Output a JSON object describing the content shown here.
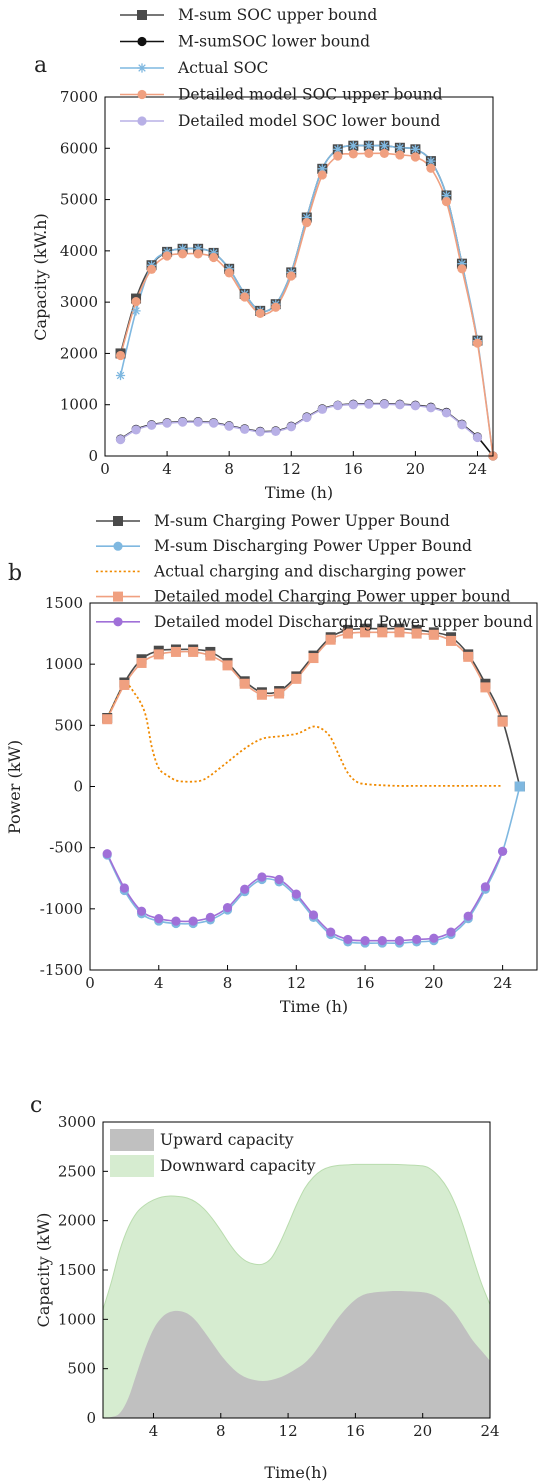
{
  "chart_data": [
    {
      "panel_label": "a",
      "type": "line",
      "xlabel": "Time (h)",
      "ylabel": "Capacity (kW.h)",
      "xlim": [
        0,
        25
      ],
      "ylim": [
        0,
        7000
      ],
      "xticks": [
        0,
        4,
        8,
        12,
        16,
        20,
        24
      ],
      "yticks": [
        0,
        1000,
        2000,
        3000,
        4000,
        5000,
        6000,
        7000
      ],
      "legend_position": "top",
      "grid": false,
      "series": [
        {
          "name": "M-sum SOC upper bound",
          "color": "#4a4a4a",
          "marker": "square",
          "x": [
            1,
            2,
            3,
            4,
            5,
            6,
            7,
            8,
            9,
            10,
            11,
            12,
            13,
            14,
            15,
            16,
            17,
            18,
            19,
            20,
            21,
            22,
            23,
            24
          ],
          "y": [
            2000,
            3070,
            3720,
            3980,
            4040,
            4040,
            3960,
            3650,
            3160,
            2830,
            2960,
            3580,
            4650,
            5600,
            5980,
            6050,
            6050,
            6050,
            6010,
            5980,
            5750,
            5080,
            3750,
            2250
          ]
        },
        {
          "name": "M-sumSOC lower bound",
          "color": "#111111",
          "marker": "circle",
          "x": [
            1,
            2,
            3,
            4,
            5,
            6,
            7,
            8,
            9,
            10,
            11,
            12,
            13,
            14,
            15,
            16,
            17,
            18,
            19,
            20,
            21,
            22,
            23,
            24,
            25
          ],
          "y": [
            330,
            520,
            610,
            650,
            670,
            670,
            650,
            590,
            530,
            480,
            490,
            580,
            760,
            920,
            990,
            1010,
            1020,
            1020,
            1010,
            990,
            950,
            850,
            620,
            370,
            0
          ]
        },
        {
          "name": "Actual SOC",
          "color": "#7fb8e0",
          "marker": "asterisk",
          "x": [
            1,
            2,
            3,
            4,
            5,
            6,
            7,
            8,
            9,
            10,
            11,
            12,
            13,
            14,
            15,
            16,
            17,
            18,
            19,
            20,
            21,
            22,
            23,
            24,
            25
          ],
          "y": [
            1570,
            2830,
            3720,
            3980,
            4040,
            4040,
            3960,
            3650,
            3160,
            2830,
            2960,
            3580,
            4650,
            5600,
            5980,
            6050,
            6050,
            6050,
            6010,
            5980,
            5750,
            5080,
            3750,
            2250,
            0
          ]
        },
        {
          "name": "Detailed model SOC upper bound",
          "color": "#f0a080",
          "marker": "circle",
          "x": [
            1,
            2,
            3,
            4,
            5,
            6,
            7,
            8,
            9,
            10,
            11,
            12,
            13,
            14,
            15,
            16,
            17,
            18,
            19,
            20,
            21,
            22,
            23,
            24,
            25
          ],
          "y": [
            1960,
            3010,
            3640,
            3900,
            3940,
            3940,
            3870,
            3570,
            3100,
            2780,
            2900,
            3510,
            4550,
            5480,
            5850,
            5890,
            5900,
            5900,
            5870,
            5830,
            5610,
            4960,
            3650,
            2200,
            0
          ]
        },
        {
          "name": "Detailed model SOC lower bound",
          "color": "#b8b0e6",
          "marker": "circle",
          "x": [
            1,
            2,
            3,
            4,
            5,
            6,
            7,
            8,
            9,
            10,
            11,
            12,
            13,
            14,
            15,
            16,
            17,
            18,
            19,
            20,
            21,
            22,
            23,
            24
          ],
          "y": [
            320,
            510,
            600,
            640,
            660,
            660,
            640,
            580,
            520,
            470,
            480,
            570,
            750,
            910,
            985,
            1000,
            1010,
            1010,
            1000,
            980,
            940,
            840,
            610,
            360
          ]
        }
      ]
    },
    {
      "panel_label": "b",
      "type": "line",
      "xlabel": "Time (h)",
      "ylabel": "Power (kW)",
      "xlim": [
        0,
        26
      ],
      "ylim": [
        -1500,
        1500
      ],
      "xticks": [
        0,
        4,
        8,
        12,
        16,
        20,
        24
      ],
      "yticks": [
        -1500,
        -1000,
        -500,
        0,
        500,
        1000,
        1500
      ],
      "legend_position": "top",
      "grid": false,
      "series": [
        {
          "name": "M-sum Charging Power Upper Bound",
          "color": "#4a4a4a",
          "marker": "square",
          "x": [
            1,
            2,
            3,
            4,
            5,
            6,
            7,
            8,
            9,
            10,
            11,
            12,
            13,
            14,
            15,
            16,
            17,
            18,
            19,
            20,
            21,
            22,
            23,
            24,
            25
          ],
          "y": [
            560,
            850,
            1040,
            1110,
            1120,
            1120,
            1100,
            1010,
            860,
            770,
            780,
            900,
            1070,
            1220,
            1280,
            1290,
            1290,
            1290,
            1280,
            1260,
            1220,
            1080,
            840,
            540,
            0
          ]
        },
        {
          "name": "M-sum Discharging Power Upper Bound",
          "color": "#7fb8e0",
          "marker": "circle",
          "x": [
            1,
            2,
            3,
            4,
            5,
            6,
            7,
            8,
            9,
            10,
            11,
            12,
            13,
            14,
            15,
            16,
            17,
            18,
            19,
            20,
            21,
            22,
            23,
            24,
            25
          ],
          "y": [
            -560,
            -850,
            -1040,
            -1100,
            -1120,
            -1120,
            -1090,
            -1010,
            -860,
            -760,
            -780,
            -900,
            -1070,
            -1210,
            -1270,
            -1280,
            -1280,
            -1280,
            -1270,
            -1260,
            -1210,
            -1080,
            -840,
            -530,
            0
          ]
        },
        {
          "name": "Actual charging and discharging power",
          "color": "#f08a00",
          "marker": "none",
          "dashed": true,
          "x": [
            1,
            2,
            2.6,
            3.2,
            3.6,
            4,
            4.5,
            5,
            5.5,
            6,
            6.5,
            7,
            8,
            9,
            10,
            11,
            12,
            12.5,
            13,
            13.5,
            14,
            14.5,
            15,
            15.5,
            16,
            17,
            18,
            19,
            20,
            21,
            22,
            23,
            24
          ],
          "y": [
            560,
            820,
            760,
            600,
            320,
            150,
            90,
            50,
            40,
            40,
            50,
            90,
            200,
            310,
            390,
            410,
            430,
            460,
            490,
            470,
            400,
            250,
            110,
            40,
            20,
            10,
            5,
            5,
            5,
            5,
            5,
            5,
            5
          ]
        },
        {
          "name": "Detailed model Charging Power upper bound",
          "color": "#f0a080",
          "marker": "square",
          "x": [
            1,
            2,
            3,
            4,
            5,
            6,
            7,
            8,
            9,
            10,
            11,
            12,
            13,
            14,
            15,
            16,
            17,
            18,
            19,
            20,
            21,
            22,
            23,
            24
          ],
          "y": [
            550,
            830,
            1010,
            1080,
            1100,
            1100,
            1070,
            990,
            840,
            750,
            760,
            880,
            1050,
            1200,
            1250,
            1260,
            1260,
            1260,
            1250,
            1240,
            1190,
            1060,
            810,
            530
          ]
        },
        {
          "name": "Detailed model Discharging Power upper bound",
          "color": "#a070d8",
          "marker": "circle",
          "x": [
            1,
            2,
            3,
            4,
            5,
            6,
            7,
            8,
            9,
            10,
            11,
            12,
            13,
            14,
            15,
            16,
            17,
            18,
            19,
            20,
            21,
            22,
            23,
            24
          ],
          "y": [
            -550,
            -830,
            -1020,
            -1080,
            -1100,
            -1100,
            -1070,
            -990,
            -840,
            -740,
            -760,
            -880,
            -1050,
            -1190,
            -1250,
            -1260,
            -1260,
            -1260,
            -1250,
            -1240,
            -1190,
            -1060,
            -820,
            -530
          ]
        }
      ]
    },
    {
      "panel_label": "c",
      "type": "area",
      "xlabel": "Time(h)",
      "ylabel": "Capacity (kW)",
      "xlim": [
        1,
        24
      ],
      "ylim": [
        0,
        3000
      ],
      "xticks": [
        4,
        8,
        12,
        16,
        20,
        24
      ],
      "yticks": [
        0,
        500,
        1000,
        1500,
        2000,
        2500,
        3000
      ],
      "legend_position": "top-left",
      "grid": false,
      "series": [
        {
          "name": "Upward capacity",
          "color": "#c0c0c0",
          "x": [
            1,
            1.5,
            2,
            2.5,
            3,
            3.5,
            4,
            4.5,
            5,
            5.5,
            6,
            6.5,
            7,
            7.5,
            8,
            8.5,
            9,
            9.5,
            10,
            10.5,
            11,
            11.5,
            12,
            12.5,
            13,
            13.5,
            14,
            14.5,
            15,
            15.5,
            16,
            16.5,
            17,
            18,
            19,
            20,
            20.5,
            21,
            21.5,
            22,
            22.5,
            23,
            23.5,
            24
          ],
          "y": [
            0,
            10,
            50,
            200,
            450,
            700,
            900,
            1020,
            1075,
            1085,
            1060,
            990,
            880,
            760,
            640,
            540,
            460,
            410,
            385,
            375,
            385,
            410,
            450,
            500,
            560,
            650,
            770,
            900,
            1020,
            1120,
            1200,
            1250,
            1270,
            1285,
            1285,
            1275,
            1255,
            1210,
            1140,
            1040,
            910,
            780,
            680,
            580
          ]
        },
        {
          "name": "Downward capacity",
          "color": "#d6ecd0",
          "x": [
            1,
            1.5,
            2,
            2.5,
            3,
            3.5,
            4,
            4.5,
            5,
            5.5,
            6,
            6.5,
            7,
            7.5,
            8,
            8.5,
            9,
            9.5,
            10,
            10.5,
            11,
            11.5,
            12,
            12.5,
            13,
            13.5,
            14,
            14.5,
            15,
            15.5,
            16,
            17,
            18,
            19,
            20,
            20.5,
            21,
            21.5,
            22,
            22.5,
            23,
            23.5,
            24
          ],
          "y": [
            1100,
            1380,
            1700,
            1930,
            2080,
            2160,
            2210,
            2240,
            2250,
            2245,
            2230,
            2190,
            2120,
            2020,
            1900,
            1770,
            1660,
            1590,
            1560,
            1560,
            1620,
            1770,
            1960,
            2160,
            2330,
            2440,
            2510,
            2545,
            2560,
            2565,
            2570,
            2570,
            2570,
            2565,
            2555,
            2520,
            2440,
            2320,
            2140,
            1900,
            1620,
            1360,
            1150
          ]
        }
      ]
    }
  ]
}
